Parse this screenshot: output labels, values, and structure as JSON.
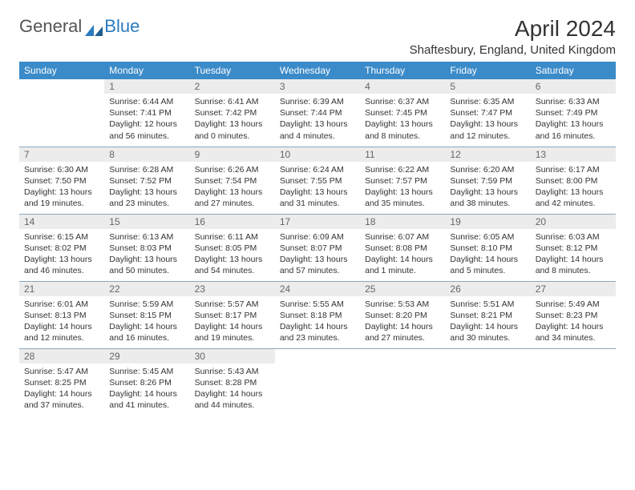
{
  "brand": {
    "word1": "General",
    "word2": "Blue"
  },
  "title": "April 2024",
  "location": "Shaftesbury, England, United Kingdom",
  "colors": {
    "header_bg": "#3b8bc9",
    "header_fg": "#ffffff",
    "daynum_bg": "#ececec",
    "daynum_fg": "#666666",
    "row_divider": "#8aa9c2",
    "body_text": "#333333",
    "brand_gray": "#555555",
    "brand_blue": "#2b7bbf"
  },
  "typography": {
    "title_fontsize": 28,
    "location_fontsize": 15,
    "header_fontsize": 12,
    "cell_fontsize": 10.5
  },
  "layout": {
    "columns": 7,
    "rows": 5
  },
  "day_headers": [
    "Sunday",
    "Monday",
    "Tuesday",
    "Wednesday",
    "Thursday",
    "Friday",
    "Saturday"
  ],
  "weeks": [
    [
      {
        "empty": true
      },
      {
        "num": "1",
        "sunrise": "Sunrise: 6:44 AM",
        "sunset": "Sunset: 7:41 PM",
        "daylight1": "Daylight: 12 hours",
        "daylight2": "and 56 minutes."
      },
      {
        "num": "2",
        "sunrise": "Sunrise: 6:41 AM",
        "sunset": "Sunset: 7:42 PM",
        "daylight1": "Daylight: 13 hours",
        "daylight2": "and 0 minutes."
      },
      {
        "num": "3",
        "sunrise": "Sunrise: 6:39 AM",
        "sunset": "Sunset: 7:44 PM",
        "daylight1": "Daylight: 13 hours",
        "daylight2": "and 4 minutes."
      },
      {
        "num": "4",
        "sunrise": "Sunrise: 6:37 AM",
        "sunset": "Sunset: 7:45 PM",
        "daylight1": "Daylight: 13 hours",
        "daylight2": "and 8 minutes."
      },
      {
        "num": "5",
        "sunrise": "Sunrise: 6:35 AM",
        "sunset": "Sunset: 7:47 PM",
        "daylight1": "Daylight: 13 hours",
        "daylight2": "and 12 minutes."
      },
      {
        "num": "6",
        "sunrise": "Sunrise: 6:33 AM",
        "sunset": "Sunset: 7:49 PM",
        "daylight1": "Daylight: 13 hours",
        "daylight2": "and 16 minutes."
      }
    ],
    [
      {
        "num": "7",
        "sunrise": "Sunrise: 6:30 AM",
        "sunset": "Sunset: 7:50 PM",
        "daylight1": "Daylight: 13 hours",
        "daylight2": "and 19 minutes."
      },
      {
        "num": "8",
        "sunrise": "Sunrise: 6:28 AM",
        "sunset": "Sunset: 7:52 PM",
        "daylight1": "Daylight: 13 hours",
        "daylight2": "and 23 minutes."
      },
      {
        "num": "9",
        "sunrise": "Sunrise: 6:26 AM",
        "sunset": "Sunset: 7:54 PM",
        "daylight1": "Daylight: 13 hours",
        "daylight2": "and 27 minutes."
      },
      {
        "num": "10",
        "sunrise": "Sunrise: 6:24 AM",
        "sunset": "Sunset: 7:55 PM",
        "daylight1": "Daylight: 13 hours",
        "daylight2": "and 31 minutes."
      },
      {
        "num": "11",
        "sunrise": "Sunrise: 6:22 AM",
        "sunset": "Sunset: 7:57 PM",
        "daylight1": "Daylight: 13 hours",
        "daylight2": "and 35 minutes."
      },
      {
        "num": "12",
        "sunrise": "Sunrise: 6:20 AM",
        "sunset": "Sunset: 7:59 PM",
        "daylight1": "Daylight: 13 hours",
        "daylight2": "and 38 minutes."
      },
      {
        "num": "13",
        "sunrise": "Sunrise: 6:17 AM",
        "sunset": "Sunset: 8:00 PM",
        "daylight1": "Daylight: 13 hours",
        "daylight2": "and 42 minutes."
      }
    ],
    [
      {
        "num": "14",
        "sunrise": "Sunrise: 6:15 AM",
        "sunset": "Sunset: 8:02 PM",
        "daylight1": "Daylight: 13 hours",
        "daylight2": "and 46 minutes."
      },
      {
        "num": "15",
        "sunrise": "Sunrise: 6:13 AM",
        "sunset": "Sunset: 8:03 PM",
        "daylight1": "Daylight: 13 hours",
        "daylight2": "and 50 minutes."
      },
      {
        "num": "16",
        "sunrise": "Sunrise: 6:11 AM",
        "sunset": "Sunset: 8:05 PM",
        "daylight1": "Daylight: 13 hours",
        "daylight2": "and 54 minutes."
      },
      {
        "num": "17",
        "sunrise": "Sunrise: 6:09 AM",
        "sunset": "Sunset: 8:07 PM",
        "daylight1": "Daylight: 13 hours",
        "daylight2": "and 57 minutes."
      },
      {
        "num": "18",
        "sunrise": "Sunrise: 6:07 AM",
        "sunset": "Sunset: 8:08 PM",
        "daylight1": "Daylight: 14 hours",
        "daylight2": "and 1 minute."
      },
      {
        "num": "19",
        "sunrise": "Sunrise: 6:05 AM",
        "sunset": "Sunset: 8:10 PM",
        "daylight1": "Daylight: 14 hours",
        "daylight2": "and 5 minutes."
      },
      {
        "num": "20",
        "sunrise": "Sunrise: 6:03 AM",
        "sunset": "Sunset: 8:12 PM",
        "daylight1": "Daylight: 14 hours",
        "daylight2": "and 8 minutes."
      }
    ],
    [
      {
        "num": "21",
        "sunrise": "Sunrise: 6:01 AM",
        "sunset": "Sunset: 8:13 PM",
        "daylight1": "Daylight: 14 hours",
        "daylight2": "and 12 minutes."
      },
      {
        "num": "22",
        "sunrise": "Sunrise: 5:59 AM",
        "sunset": "Sunset: 8:15 PM",
        "daylight1": "Daylight: 14 hours",
        "daylight2": "and 16 minutes."
      },
      {
        "num": "23",
        "sunrise": "Sunrise: 5:57 AM",
        "sunset": "Sunset: 8:17 PM",
        "daylight1": "Daylight: 14 hours",
        "daylight2": "and 19 minutes."
      },
      {
        "num": "24",
        "sunrise": "Sunrise: 5:55 AM",
        "sunset": "Sunset: 8:18 PM",
        "daylight1": "Daylight: 14 hours",
        "daylight2": "and 23 minutes."
      },
      {
        "num": "25",
        "sunrise": "Sunrise: 5:53 AM",
        "sunset": "Sunset: 8:20 PM",
        "daylight1": "Daylight: 14 hours",
        "daylight2": "and 27 minutes."
      },
      {
        "num": "26",
        "sunrise": "Sunrise: 5:51 AM",
        "sunset": "Sunset: 8:21 PM",
        "daylight1": "Daylight: 14 hours",
        "daylight2": "and 30 minutes."
      },
      {
        "num": "27",
        "sunrise": "Sunrise: 5:49 AM",
        "sunset": "Sunset: 8:23 PM",
        "daylight1": "Daylight: 14 hours",
        "daylight2": "and 34 minutes."
      }
    ],
    [
      {
        "num": "28",
        "sunrise": "Sunrise: 5:47 AM",
        "sunset": "Sunset: 8:25 PM",
        "daylight1": "Daylight: 14 hours",
        "daylight2": "and 37 minutes."
      },
      {
        "num": "29",
        "sunrise": "Sunrise: 5:45 AM",
        "sunset": "Sunset: 8:26 PM",
        "daylight1": "Daylight: 14 hours",
        "daylight2": "and 41 minutes."
      },
      {
        "num": "30",
        "sunrise": "Sunrise: 5:43 AM",
        "sunset": "Sunset: 8:28 PM",
        "daylight1": "Daylight: 14 hours",
        "daylight2": "and 44 minutes."
      },
      {
        "empty": true
      },
      {
        "empty": true
      },
      {
        "empty": true
      },
      {
        "empty": true
      }
    ]
  ]
}
